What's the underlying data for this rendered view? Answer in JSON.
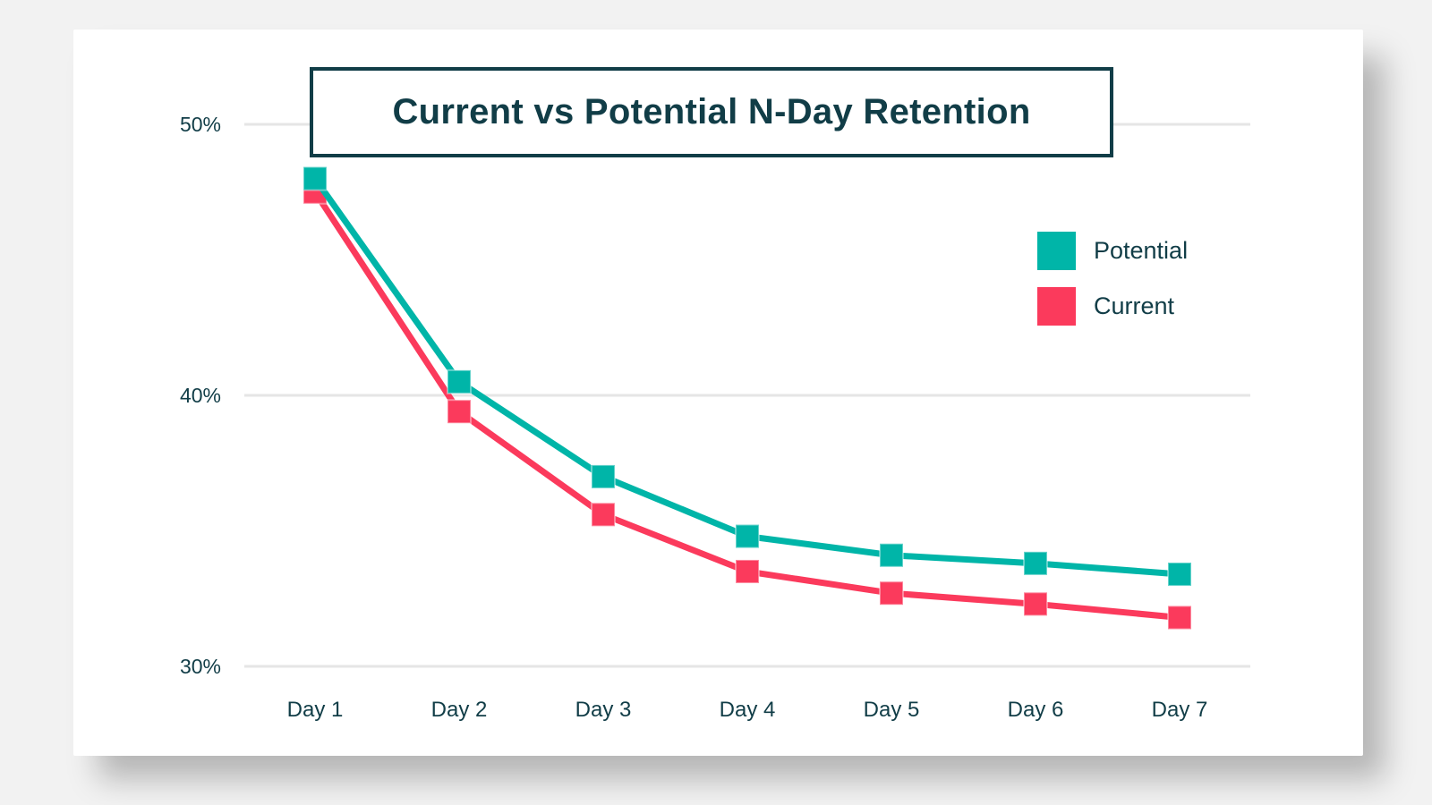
{
  "page": {
    "background_color": "#f2f2f2",
    "card_background_color": "#ffffff"
  },
  "colors": {
    "accent_dark_teal": "#113d47",
    "gridline": "#e5e5e5",
    "potential_teal": "#00B5A8",
    "current_pink": "#FB3A5C"
  },
  "chart_data": {
    "type": "line",
    "title": "Current vs Potential N-Day Retention",
    "xlabel": "",
    "ylabel": "",
    "unit": "%",
    "grid": "horizontal",
    "marker": "square",
    "legend_position": "right-upper",
    "categories": [
      "Day 1",
      "Day 2",
      "Day 3",
      "Day 4",
      "Day 5",
      "Day 6",
      "Day 7"
    ],
    "series": [
      {
        "name": "Potential",
        "color": "#00B5A8",
        "values": [
          48.0,
          40.5,
          37.0,
          34.8,
          34.1,
          33.8,
          33.4
        ]
      },
      {
        "name": "Current",
        "color": "#FB3A5C",
        "values": [
          47.5,
          39.4,
          35.6,
          33.5,
          32.7,
          32.3,
          31.8
        ]
      }
    ],
    "y_axis": {
      "ticks": [
        {
          "value": 50,
          "label": "50%"
        },
        {
          "value": 40,
          "label": "40%"
        },
        {
          "value": 30,
          "label": "30%"
        }
      ],
      "ylim": [
        29,
        51
      ]
    }
  }
}
